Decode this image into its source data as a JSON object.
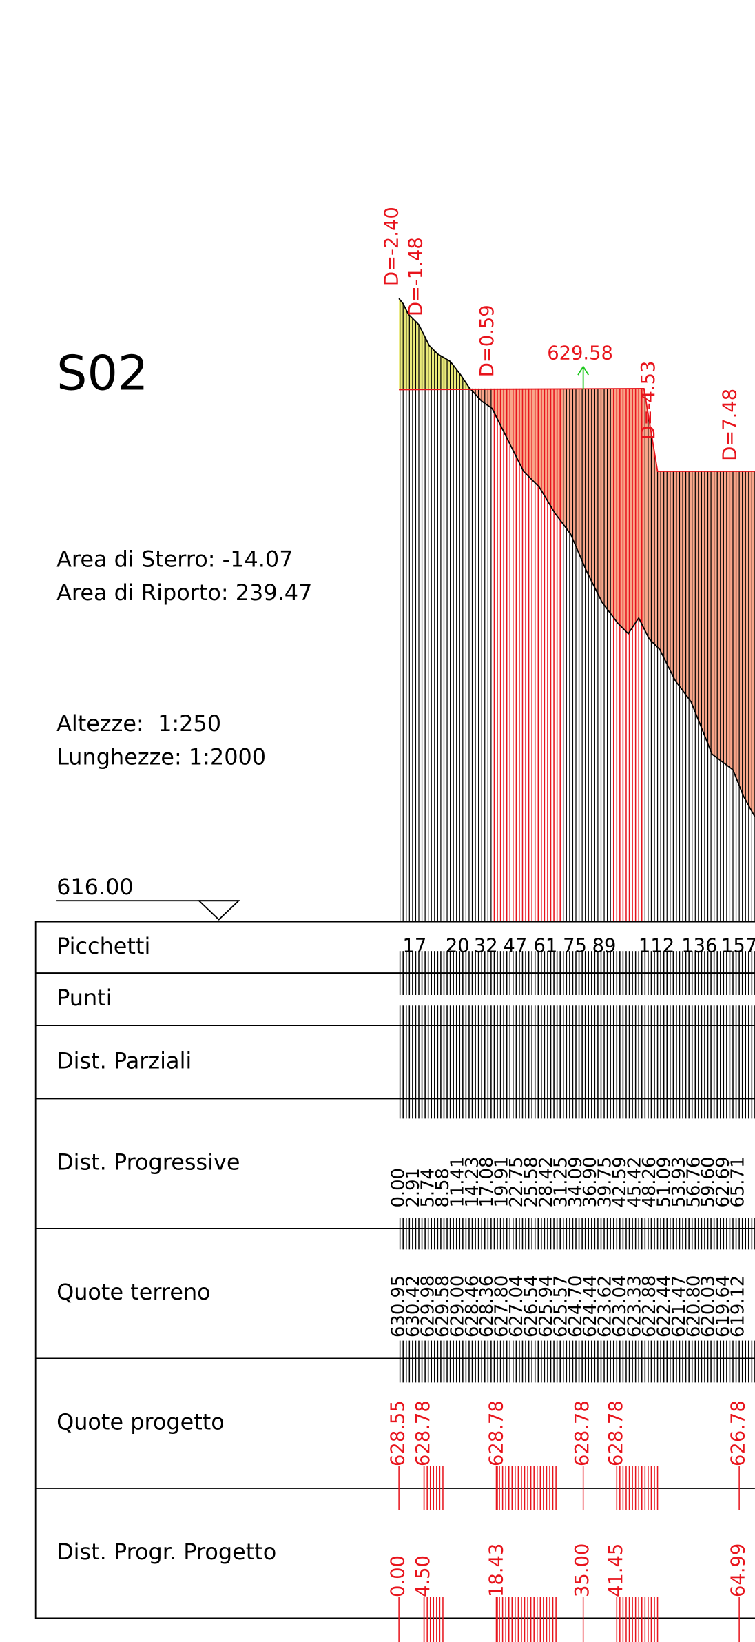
{
  "title": "S02",
  "areas": {
    "sterro": "Area di Sterro: -14.07",
    "riporto": "Area di Riporto: 239.47"
  },
  "scales": {
    "altezze": "Altezze:  1:250",
    "lunghezze": "Lunghezze: 1:2000"
  },
  "reference_level": "616.00",
  "annotations": [
    "D=-2.40",
    "D=-1.48",
    "D=0.59",
    "629.58",
    "D=-4.53",
    "D=7.48"
  ],
  "table": {
    "rows": [
      "Picchetti",
      "Punti",
      "Dist. Parziali",
      "Dist. Progressive",
      "Quote terreno",
      "Quote progetto",
      "Dist. Progr. Progetto"
    ]
  },
  "picchetti": [
    "17",
    "20",
    "32",
    "47",
    "61",
    "75",
    "89",
    "112",
    "136",
    "157"
  ],
  "dist_progressive": [
    "0.00",
    "2.91",
    "5.74",
    "8.58",
    "11.41",
    "14.23",
    "17.08",
    "19.91",
    "22.75",
    "25.58",
    "28.42",
    "31.25",
    "34.09",
    "36.90",
    "39.75",
    "42.59",
    "45.42",
    "48.26",
    "51.09",
    "53.93",
    "56.76",
    "59.60",
    "62.69",
    "65.71"
  ],
  "quote_terreno": [
    "630.95",
    "630.42",
    "629.98",
    "629.58",
    "629.00",
    "628.46",
    "628.36",
    "627.80",
    "627.04",
    "626.54",
    "625.94",
    "625.57",
    "624.70",
    "624.44",
    "623.62",
    "623.04",
    "623.33",
    "622.88",
    "622.44",
    "621.47",
    "620.80",
    "620.03",
    "619.64",
    "619.12"
  ],
  "quote_progetto": [
    "628.55",
    "628.78",
    "628.78",
    "628.78",
    "628.78",
    "626.78"
  ],
  "dist_progr_progetto": [
    "0.00",
    "4.50",
    "18.43",
    "35.00",
    "41.45",
    "64.99"
  ]
}
